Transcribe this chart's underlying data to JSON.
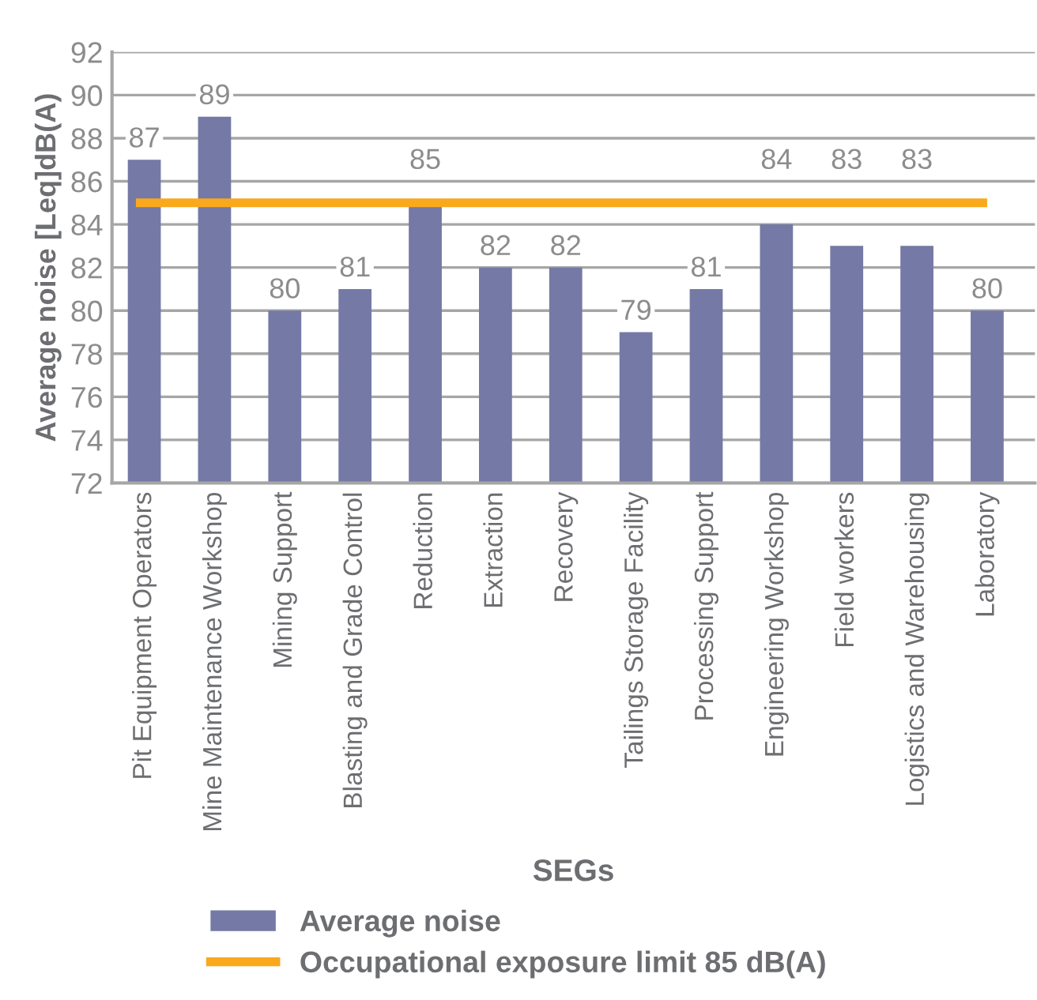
{
  "chart_data": {
    "type": "bar",
    "xlabel": "SEGs",
    "ylabel": "Average noise [Leq]dB(A)",
    "categories": [
      "Pit Equipment Operators",
      "Mine Maintenance Workshop",
      "Mining Support",
      "Blasting and Grade Control",
      "Reduction",
      "Extraction",
      "Recovery",
      "Tailings Storage Facility",
      "Processing Support",
      "Engineering Workshop",
      "Field workers",
      "Logistics and Warehousing",
      "Laboratory"
    ],
    "series": [
      {
        "name": "Average noise",
        "color": "#7579a5",
        "values": [
          87,
          89,
          80,
          81,
          85,
          82,
          82,
          79,
          81,
          84,
          83,
          83,
          80
        ]
      }
    ],
    "ylim": [
      72,
      92
    ],
    "yticks": [
      72,
      74,
      76,
      78,
      80,
      82,
      84,
      86,
      88,
      90,
      92
    ],
    "grid": "y",
    "data_labels": true,
    "legend": "bottom",
    "ref_lines": [
      {
        "axis": "y",
        "value": 85,
        "label": "Occupational exposure limit 85 dB(A)",
        "color": "#f9a91b"
      }
    ]
  }
}
